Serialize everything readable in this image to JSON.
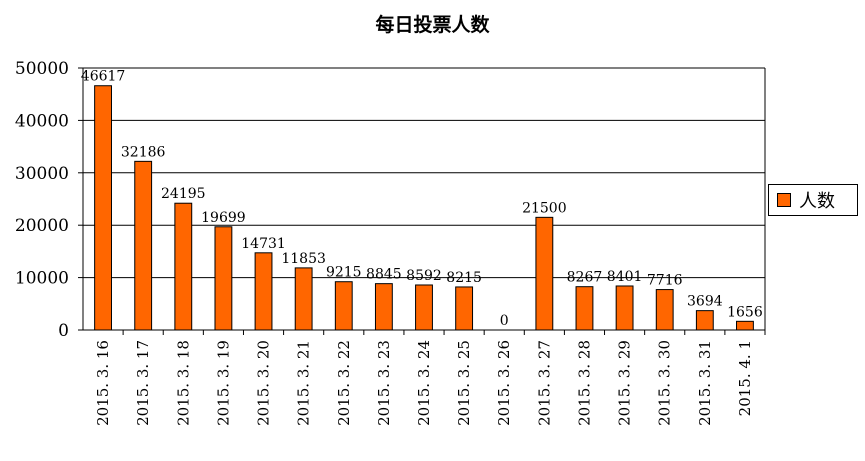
{
  "chart_data": {
    "type": "bar",
    "title": "每日投票人数",
    "xlabel": "",
    "ylabel": "",
    "ylim": [
      0,
      50000
    ],
    "yticks": [
      0,
      10000,
      20000,
      30000,
      40000,
      50000
    ],
    "grid": true,
    "legend_position": "right",
    "categories": [
      "2015.3.16",
      "2015.3.17",
      "2015.3.18",
      "2015.3.19",
      "2015.3.20",
      "2015.3.21",
      "2015.3.22",
      "2015.3.23",
      "2015.3.24",
      "2015.3.25",
      "2015.3.26",
      "2015.3.27",
      "2015.3.28",
      "2015.3.29",
      "2015.3.30",
      "2015.3.31",
      "2015.4.1"
    ],
    "category_labels": [
      "2015. 3. 16",
      "2015. 3. 17",
      "2015. 3. 18",
      "2015. 3. 19",
      "2015. 3. 20",
      "2015. 3. 21",
      "2015. 3. 22",
      "2015. 3. 23",
      "2015. 3. 24",
      "2015. 3. 25",
      "2015. 3. 26",
      "2015. 3. 27",
      "2015. 3. 28",
      "2015. 3. 29",
      "2015. 3. 30",
      "2015. 3. 31",
      "2015. 4. 1"
    ],
    "series": [
      {
        "name": "人数",
        "color": "#FF6600",
        "values": [
          46617,
          32186,
          24195,
          19699,
          14731,
          11853,
          9215,
          8845,
          8592,
          8215,
          0,
          21500,
          8267,
          8401,
          7716,
          3694,
          1656
        ]
      }
    ]
  }
}
